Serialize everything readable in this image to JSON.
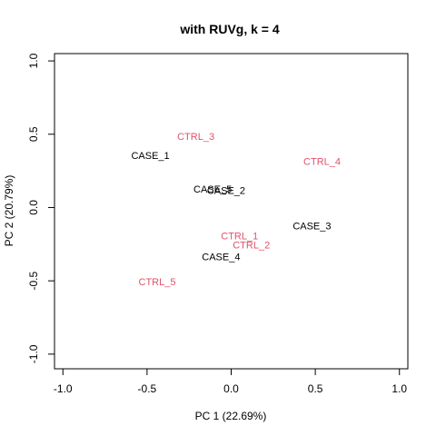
{
  "chart_data": {
    "type": "scatter",
    "title": "with RUVg, k = 4",
    "xlabel": "PC 1 (22.69%)",
    "ylabel": "PC 2 (20.79%)",
    "xlim": [
      -1.05,
      1.05
    ],
    "ylim": [
      -1.1,
      1.05
    ],
    "xticks": [
      -1.0,
      -0.5,
      0.0,
      0.5,
      1.0
    ],
    "xtick_labels": [
      "-1.0",
      "-0.5",
      "0.0",
      "0.5",
      "1.0"
    ],
    "yticks": [
      -1.0,
      -0.5,
      0.0,
      0.5,
      1.0
    ],
    "ytick_labels": [
      "-1.0",
      "-0.5",
      "0.0",
      "0.5",
      "1.0"
    ],
    "grid": false,
    "legend": "none",
    "colors": {
      "CASE": "#000000",
      "CTRL": "#DF536B"
    },
    "points": [
      {
        "label": "CASE_1",
        "group": "CASE",
        "x": -0.48,
        "y": 0.35
      },
      {
        "label": "CASE_5",
        "group": "CASE",
        "x": -0.11,
        "y": 0.12
      },
      {
        "label": "CASE_2",
        "group": "CASE",
        "x": -0.03,
        "y": 0.11
      },
      {
        "label": "CASE_3",
        "group": "CASE",
        "x": 0.48,
        "y": -0.13
      },
      {
        "label": "CASE_4",
        "group": "CASE",
        "x": -0.06,
        "y": -0.34
      },
      {
        "label": "CTRL_1",
        "group": "CTRL",
        "x": 0.05,
        "y": -0.2
      },
      {
        "label": "CTRL_2",
        "group": "CTRL",
        "x": 0.12,
        "y": -0.26
      },
      {
        "label": "CTRL_3",
        "group": "CTRL",
        "x": -0.21,
        "y": 0.48
      },
      {
        "label": "CTRL_4",
        "group": "CTRL",
        "x": 0.54,
        "y": 0.31
      },
      {
        "label": "CTRL_5",
        "group": "CTRL",
        "x": -0.44,
        "y": -0.51
      }
    ]
  }
}
